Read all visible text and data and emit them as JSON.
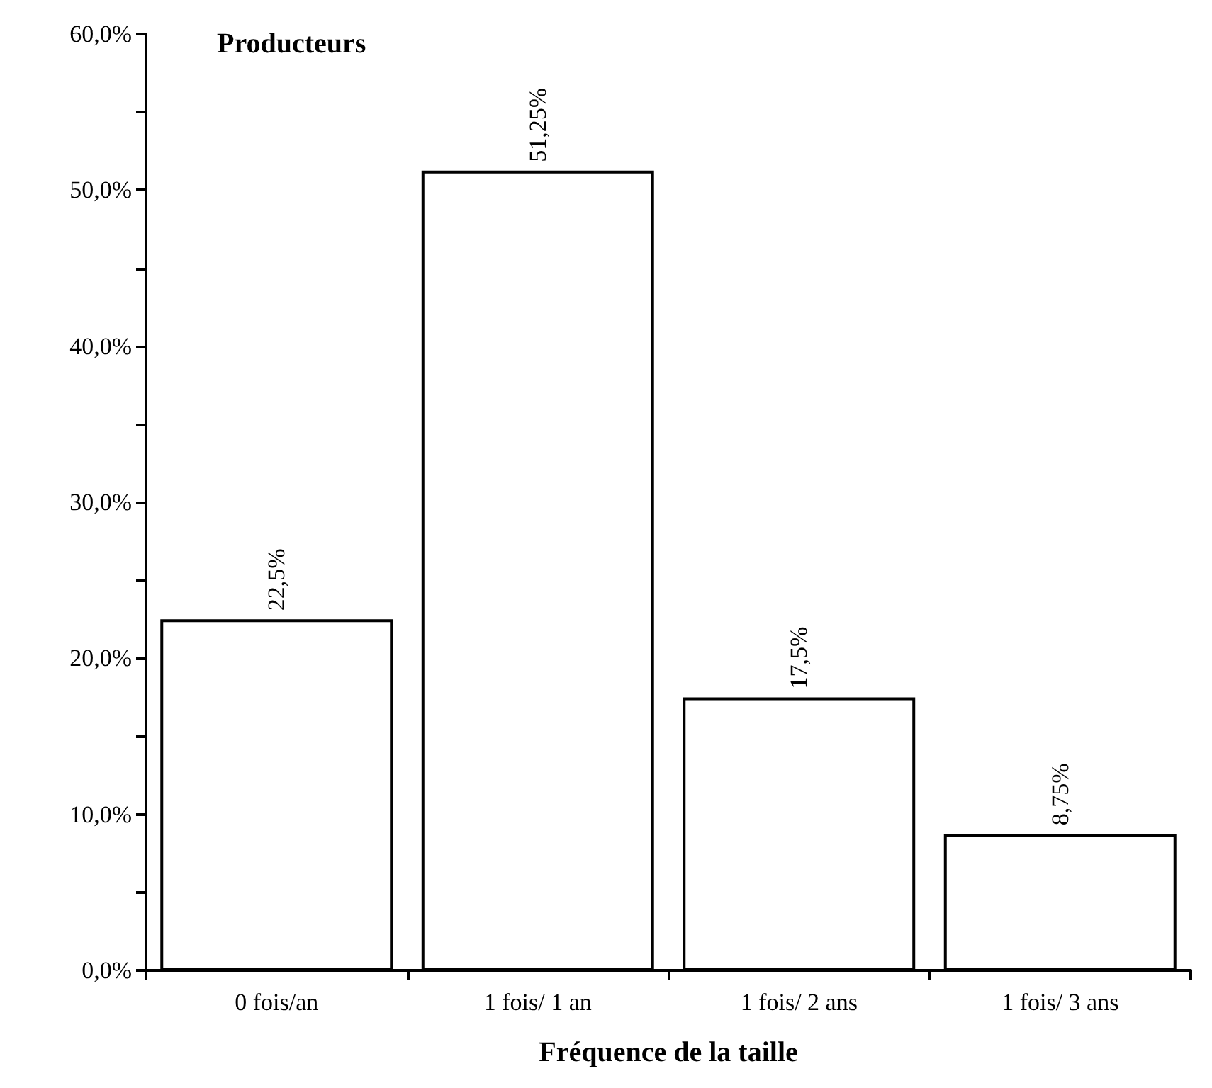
{
  "chart_data": {
    "type": "bar",
    "title": "Producteurs",
    "xlabel": "Fréquence de la taille",
    "categories": [
      "0 fois/an",
      "1 fois/ 1 an",
      "1 fois/ 2 ans",
      "1 fois/ 3 ans"
    ],
    "values": [
      22.5,
      51.25,
      17.5,
      8.75
    ],
    "value_labels": [
      "22,5%",
      "51,25%",
      "17,5%",
      "8,75%"
    ],
    "color": "#ffffff",
    "ylim": [
      0,
      60
    ],
    "yticks": [
      {
        "value": 0,
        "label": "0,0%"
      },
      {
        "value": 5,
        "label": null
      },
      {
        "value": 10,
        "label": "10,0%"
      },
      {
        "value": 15,
        "label": null
      },
      {
        "value": 20,
        "label": "20,0%"
      },
      {
        "value": 25,
        "label": null
      },
      {
        "value": 30,
        "label": "30,0%"
      },
      {
        "value": 35,
        "label": null
      },
      {
        "value": 40,
        "label": "40,0%"
      },
      {
        "value": 45,
        "label": null
      },
      {
        "value": 50,
        "label": "50,0%"
      },
      {
        "value": 55,
        "label": null
      },
      {
        "value": 60,
        "label": "60,0%"
      }
    ],
    "grid": false
  }
}
